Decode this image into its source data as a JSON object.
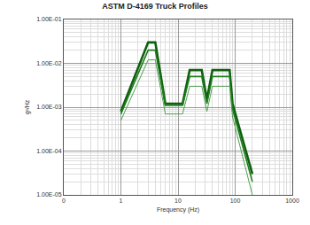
{
  "chart_data": {
    "type": "line",
    "title": "ASTM D-4169 Truck Profiles",
    "x_label": "Frequency (Hz)",
    "y_label": "g²/Hz",
    "log": true,
    "grid": true,
    "x": [
      1,
      3,
      4,
      6,
      12,
      16,
      26,
      32,
      40,
      80,
      90,
      200
    ],
    "series": [
      {
        "color": "#0f5f0f",
        "values": [
          0.0008,
          0.03,
          0.03,
          0.0012,
          0.0012,
          0.007,
          0.007,
          0.0015,
          0.007,
          0.007,
          0.0012,
          3e-05
        ]
      },
      {
        "color": "#1e7d1e",
        "values": [
          0.0007,
          0.02,
          0.02,
          0.0011,
          0.0011,
          0.005,
          0.005,
          0.0012,
          0.005,
          0.005,
          0.0009,
          2e-05
        ]
      },
      {
        "color": "#4f9f4f",
        "values": [
          0.0005,
          0.012,
          0.012,
          0.0007,
          0.0007,
          0.003,
          0.003,
          0.0008,
          0.003,
          0.003,
          0.0006,
          1e-05
        ]
      }
    ],
    "xlim": [
      0.1,
      1000
    ],
    "xticks": [
      {
        "value": 0.1,
        "label": "0"
      },
      1,
      10,
      100,
      1000
    ],
    "ylim": [
      1e-05,
      0.1
    ],
    "yticks": [
      {
        "value": 0.1,
        "label": "1.00E-01"
      },
      {
        "value": 0.01,
        "label": "1.00E-02"
      },
      {
        "value": 0.001,
        "label": "1.00E-03"
      },
      {
        "value": 0.0001,
        "label": "1.00E-04"
      },
      {
        "value": 1e-05,
        "label": "1.00E-05"
      }
    ]
  }
}
